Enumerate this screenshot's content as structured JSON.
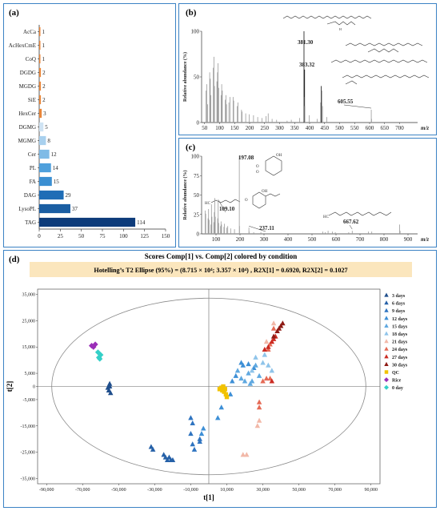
{
  "panel_labels": {
    "a": "(a)",
    "b": "(b)",
    "c": "(c)",
    "d": "(d)"
  },
  "colors": {
    "frame": "#3b82c4",
    "bar_dark": "#0d3b7a",
    "bar_light": "#a8d0ee",
    "bar_orange": "#e8863a",
    "banner": "#fbe6bd"
  },
  "chart_data": [
    {
      "type": "bar",
      "orientation": "horizontal",
      "categories": [
        "AcCa",
        "AcHexCmE",
        "CoQ",
        "DGDG",
        "MGDG",
        "SiE",
        "HexCer",
        "DGMG",
        "MGMG",
        "Cer",
        "PL",
        "FA",
        "DAG",
        "LysoPL",
        "TAG"
      ],
      "values": [
        1,
        1,
        1,
        2,
        2,
        2,
        3,
        5,
        8,
        12,
        14,
        15,
        29,
        37,
        114
      ],
      "xlim": [
        0,
        150
      ],
      "xticks": [
        0,
        25,
        50,
        75,
        100,
        125,
        150
      ],
      "colors": [
        "#e8863a",
        "#e8863a",
        "#e8863a",
        "#e8863a",
        "#e8863a",
        "#e8863a",
        "#e8863a",
        "#cfe3f3",
        "#a8d0ee",
        "#7fbbe6",
        "#4fa0dc",
        "#3b8fd2",
        "#1f6db6",
        "#1a5ea3",
        "#0d3b7a"
      ]
    },
    {
      "type": "bar",
      "subtype": "mass-spectrum",
      "ylabel": "Relative abundance (%)",
      "xlabel": "m/z",
      "xlim": [
        40,
        760
      ],
      "ylim": [
        0,
        100
      ],
      "xticks": [
        50,
        100,
        150,
        200,
        250,
        300,
        350,
        400,
        450,
        500,
        550,
        600,
        650,
        700
      ],
      "yticks": [
        0,
        50,
        100
      ],
      "annotations": [
        "381.30",
        "383.32",
        "605.55"
      ],
      "peaks": [
        {
          "x": 55,
          "y": 35
        },
        {
          "x": 57,
          "y": 42
        },
        {
          "x": 60,
          "y": 20
        },
        {
          "x": 67,
          "y": 55
        },
        {
          "x": 69,
          "y": 48
        },
        {
          "x": 71,
          "y": 30
        },
        {
          "x": 79,
          "y": 60
        },
        {
          "x": 81,
          "y": 72
        },
        {
          "x": 83,
          "y": 40
        },
        {
          "x": 91,
          "y": 45
        },
        {
          "x": 93,
          "y": 55
        },
        {
          "x": 95,
          "y": 65
        },
        {
          "x": 97,
          "y": 38
        },
        {
          "x": 105,
          "y": 30
        },
        {
          "x": 107,
          "y": 42
        },
        {
          "x": 109,
          "y": 35
        },
        {
          "x": 119,
          "y": 25
        },
        {
          "x": 121,
          "y": 30
        },
        {
          "x": 123,
          "y": 20
        },
        {
          "x": 131,
          "y": 22
        },
        {
          "x": 135,
          "y": 28
        },
        {
          "x": 145,
          "y": 28
        },
        {
          "x": 147,
          "y": 24
        },
        {
          "x": 159,
          "y": 18
        },
        {
          "x": 161,
          "y": 22
        },
        {
          "x": 173,
          "y": 14
        },
        {
          "x": 175,
          "y": 12
        },
        {
          "x": 187,
          "y": 10
        },
        {
          "x": 199,
          "y": 9
        },
        {
          "x": 213,
          "y": 8
        },
        {
          "x": 227,
          "y": 6
        },
        {
          "x": 241,
          "y": 5
        },
        {
          "x": 255,
          "y": 7
        },
        {
          "x": 262,
          "y": 10
        },
        {
          "x": 275,
          "y": 4
        },
        {
          "x": 290,
          "y": 3
        },
        {
          "x": 325,
          "y": 2
        },
        {
          "x": 339,
          "y": 3
        },
        {
          "x": 367,
          "y": 5
        },
        {
          "x": 381.3,
          "y": 100
        },
        {
          "x": 382.3,
          "y": 28
        },
        {
          "x": 383.32,
          "y": 58
        },
        {
          "x": 384.3,
          "y": 18
        },
        {
          "x": 399,
          "y": 8
        },
        {
          "x": 425,
          "y": 4
        },
        {
          "x": 437,
          "y": 22
        },
        {
          "x": 439,
          "y": 40
        },
        {
          "x": 441,
          "y": 35
        },
        {
          "x": 443,
          "y": 18
        },
        {
          "x": 457,
          "y": 6
        },
        {
          "x": 605.55,
          "y": 14
        },
        {
          "x": 606.5,
          "y": 4
        }
      ]
    },
    {
      "type": "bar",
      "subtype": "mass-spectrum",
      "ylabel": "Relative abundance (%)",
      "xlabel": "m/z",
      "xlim": [
        40,
        940
      ],
      "ylim": [
        0,
        100
      ],
      "xticks": [
        100,
        200,
        300,
        400,
        500,
        600,
        700,
        800,
        900
      ],
      "yticks": [
        0,
        25,
        50,
        75,
        100
      ],
      "annotations": [
        "197.08",
        "109.10",
        "237.11",
        "667.62"
      ],
      "peaks": [
        {
          "x": 55,
          "y": 30
        },
        {
          "x": 57,
          "y": 26
        },
        {
          "x": 67,
          "y": 20
        },
        {
          "x": 69,
          "y": 32
        },
        {
          "x": 71,
          "y": 18
        },
        {
          "x": 79,
          "y": 12
        },
        {
          "x": 81,
          "y": 38
        },
        {
          "x": 83,
          "y": 22
        },
        {
          "x": 91,
          "y": 15
        },
        {
          "x": 93,
          "y": 28
        },
        {
          "x": 95,
          "y": 46
        },
        {
          "x": 97,
          "y": 22
        },
        {
          "x": 107,
          "y": 20
        },
        {
          "x": 109.1,
          "y": 42
        },
        {
          "x": 111,
          "y": 14
        },
        {
          "x": 119,
          "y": 10
        },
        {
          "x": 121,
          "y": 16
        },
        {
          "x": 123,
          "y": 12
        },
        {
          "x": 133,
          "y": 9
        },
        {
          "x": 135,
          "y": 13
        },
        {
          "x": 145,
          "y": 8
        },
        {
          "x": 149,
          "y": 10
        },
        {
          "x": 161,
          "y": 7
        },
        {
          "x": 177,
          "y": 6
        },
        {
          "x": 197.08,
          "y": 100
        },
        {
          "x": 198,
          "y": 10
        },
        {
          "x": 237.11,
          "y": 8
        },
        {
          "x": 238,
          "y": 3
        },
        {
          "x": 257,
          "y": 2
        },
        {
          "x": 287,
          "y": 2
        },
        {
          "x": 545,
          "y": 3
        },
        {
          "x": 555,
          "y": 2
        },
        {
          "x": 567,
          "y": 4
        },
        {
          "x": 585,
          "y": 3
        },
        {
          "x": 597,
          "y": 2
        },
        {
          "x": 653,
          "y": 2
        },
        {
          "x": 667.62,
          "y": 4
        },
        {
          "x": 735,
          "y": 3
        },
        {
          "x": 749,
          "y": 3
        },
        {
          "x": 865,
          "y": 12
        },
        {
          "x": 867,
          "y": 4
        }
      ]
    },
    {
      "type": "scatter",
      "title": "Scores Comp[1] vs. Comp[2] colored by condition",
      "subtitle": "Hotelling’s T2 Ellipse (95%) = (8.715 × 10⁴; 3.357 × 10⁴) , R2X[1] = 0.6920, R2X[2] = 0.1027",
      "xlabel": "t[1]",
      "ylabel": "t[2]",
      "xlim": [
        -95000,
        95000
      ],
      "ylim": [
        -37000,
        37000
      ],
      "xticks": [
        -90000,
        -70000,
        -50000,
        -30000,
        -10000,
        10000,
        30000,
        50000,
        70000,
        90000
      ],
      "xtick_labels": [
        "-90,000",
        "-70,000",
        "-50,000",
        "-30,000",
        "-10,000",
        "10,000",
        "30,000",
        "50,000",
        "70,000",
        "90,000"
      ],
      "yticks": [
        -35000,
        -25000,
        -15000,
        -5000,
        0,
        5000,
        15000,
        25000,
        35000
      ],
      "ytick_labels": [
        "-35,000",
        "-25,000",
        "-15,000",
        "-5,000",
        "0",
        "5,000",
        "15,000",
        "25,000",
        "35,000"
      ],
      "ellipse": {
        "rx": 87150,
        "ry": 33570
      },
      "legend_position": "right",
      "series": [
        {
          "name": "3 days",
          "marker": "triangle",
          "color": "#1f4e8c",
          "points": [
            [
              -55000,
              0
            ],
            [
              -55500,
              -1500
            ],
            [
              -54500,
              -2500
            ],
            [
              -55000,
              1000
            ],
            [
              -56000,
              -500
            ]
          ]
        },
        {
          "name": "6 days",
          "marker": "triangle",
          "color": "#2661a8",
          "points": [
            [
              -32000,
              -23000
            ],
            [
              -31000,
              -24000
            ],
            [
              -25000,
              -26000
            ],
            [
              -23000,
              -28000
            ],
            [
              -22000,
              -27000
            ],
            [
              -21000,
              -28000
            ],
            [
              -20000,
              -28000
            ],
            [
              -24000,
              -27000
            ]
          ]
        },
        {
          "name": "9 days",
          "marker": "triangle",
          "color": "#2f74c0",
          "points": [
            [
              -10000,
              -12000
            ],
            [
              -9000,
              -14000
            ],
            [
              -10000,
              -18000
            ],
            [
              -8000,
              -24000
            ],
            [
              -9000,
              -22000
            ],
            [
              -5000,
              -21000
            ],
            [
              -5000,
              -20000
            ]
          ]
        },
        {
          "name": "12 days",
          "marker": "triangle",
          "color": "#3d8fd6",
          "points": [
            [
              -3000,
              -16000
            ],
            [
              -4000,
              -18000
            ],
            [
              5000,
              -12000
            ],
            [
              7000,
              -8000
            ],
            [
              12000,
              -3000
            ],
            [
              13000,
              2000
            ],
            [
              15000,
              4000
            ],
            [
              18000,
              9000
            ],
            [
              19000,
              8000
            ],
            [
              22000,
              8500
            ],
            [
              25000,
              7000
            ]
          ]
        },
        {
          "name": "15 days",
          "marker": "triangle",
          "color": "#5fa8e0",
          "points": [
            [
              16000,
              6000
            ],
            [
              18000,
              3000
            ],
            [
              20000,
              2000
            ],
            [
              22000,
              5000
            ],
            [
              24000,
              2000
            ],
            [
              23000,
              1000
            ],
            [
              26000,
              8000
            ],
            [
              28000,
              4000
            ]
          ]
        },
        {
          "name": "18 days",
          "marker": "triangle",
          "color": "#8fc4ea",
          "points": [
            [
              24000,
              6000
            ],
            [
              26000,
              11000
            ],
            [
              30000,
              9000
            ],
            [
              31000,
              12000
            ],
            [
              33000,
              8000
            ],
            [
              35000,
              6000
            ]
          ]
        },
        {
          "name": "21 days",
          "marker": "triangle",
          "color": "#f2b8a8",
          "points": [
            [
              19000,
              -26000
            ],
            [
              21000,
              -26000
            ],
            [
              27000,
              -15000
            ],
            [
              28000,
              -13000
            ],
            [
              36000,
              24000
            ],
            [
              32000,
              17000
            ]
          ]
        },
        {
          "name": "24 days",
          "marker": "triangle",
          "color": "#e56a55",
          "points": [
            [
              28000,
              -6000
            ],
            [
              28000,
              -8000
            ],
            [
              30000,
              2000
            ],
            [
              32000,
              3000
            ],
            [
              34000,
              3000
            ],
            [
              33000,
              14000
            ],
            [
              34000,
              16000
            ],
            [
              36000,
              22000
            ]
          ]
        },
        {
          "name": "27 days",
          "marker": "triangle",
          "color": "#cc2b22",
          "points": [
            [
              31000,
              14000
            ],
            [
              33000,
              15000
            ],
            [
              35000,
              17000
            ],
            [
              36000,
              18000
            ],
            [
              37000,
              19000
            ],
            [
              35000,
              2000
            ]
          ]
        },
        {
          "name": "30 days",
          "marker": "triangle",
          "color": "#8e1a14",
          "points": [
            [
              36000,
              19000
            ],
            [
              38000,
              21000
            ],
            [
              39000,
              22000
            ],
            [
              40000,
              23000
            ],
            [
              41000,
              24000
            ]
          ]
        },
        {
          "name": "QC",
          "marker": "square",
          "color": "#f2c200",
          "points": [
            [
              6000,
              -1000
            ],
            [
              7000,
              -500
            ],
            [
              8000,
              0
            ],
            [
              7500,
              -1500
            ],
            [
              9000,
              -1000
            ],
            [
              8500,
              -2000
            ],
            [
              10000,
              -4000
            ],
            [
              9500,
              -3000
            ]
          ]
        },
        {
          "name": "Rice",
          "marker": "diamond",
          "color": "#9b2fb8",
          "points": [
            [
              -63000,
              16000
            ],
            [
              -64000,
              15000
            ],
            [
              -65000,
              15500
            ]
          ]
        },
        {
          "name": "0 day",
          "marker": "diamond",
          "color": "#34d0c8",
          "points": [
            [
              -61000,
              11000
            ],
            [
              -60000,
              12000
            ],
            [
              -61500,
              13000
            ],
            [
              -60500,
              10500
            ]
          ]
        }
      ]
    }
  ]
}
